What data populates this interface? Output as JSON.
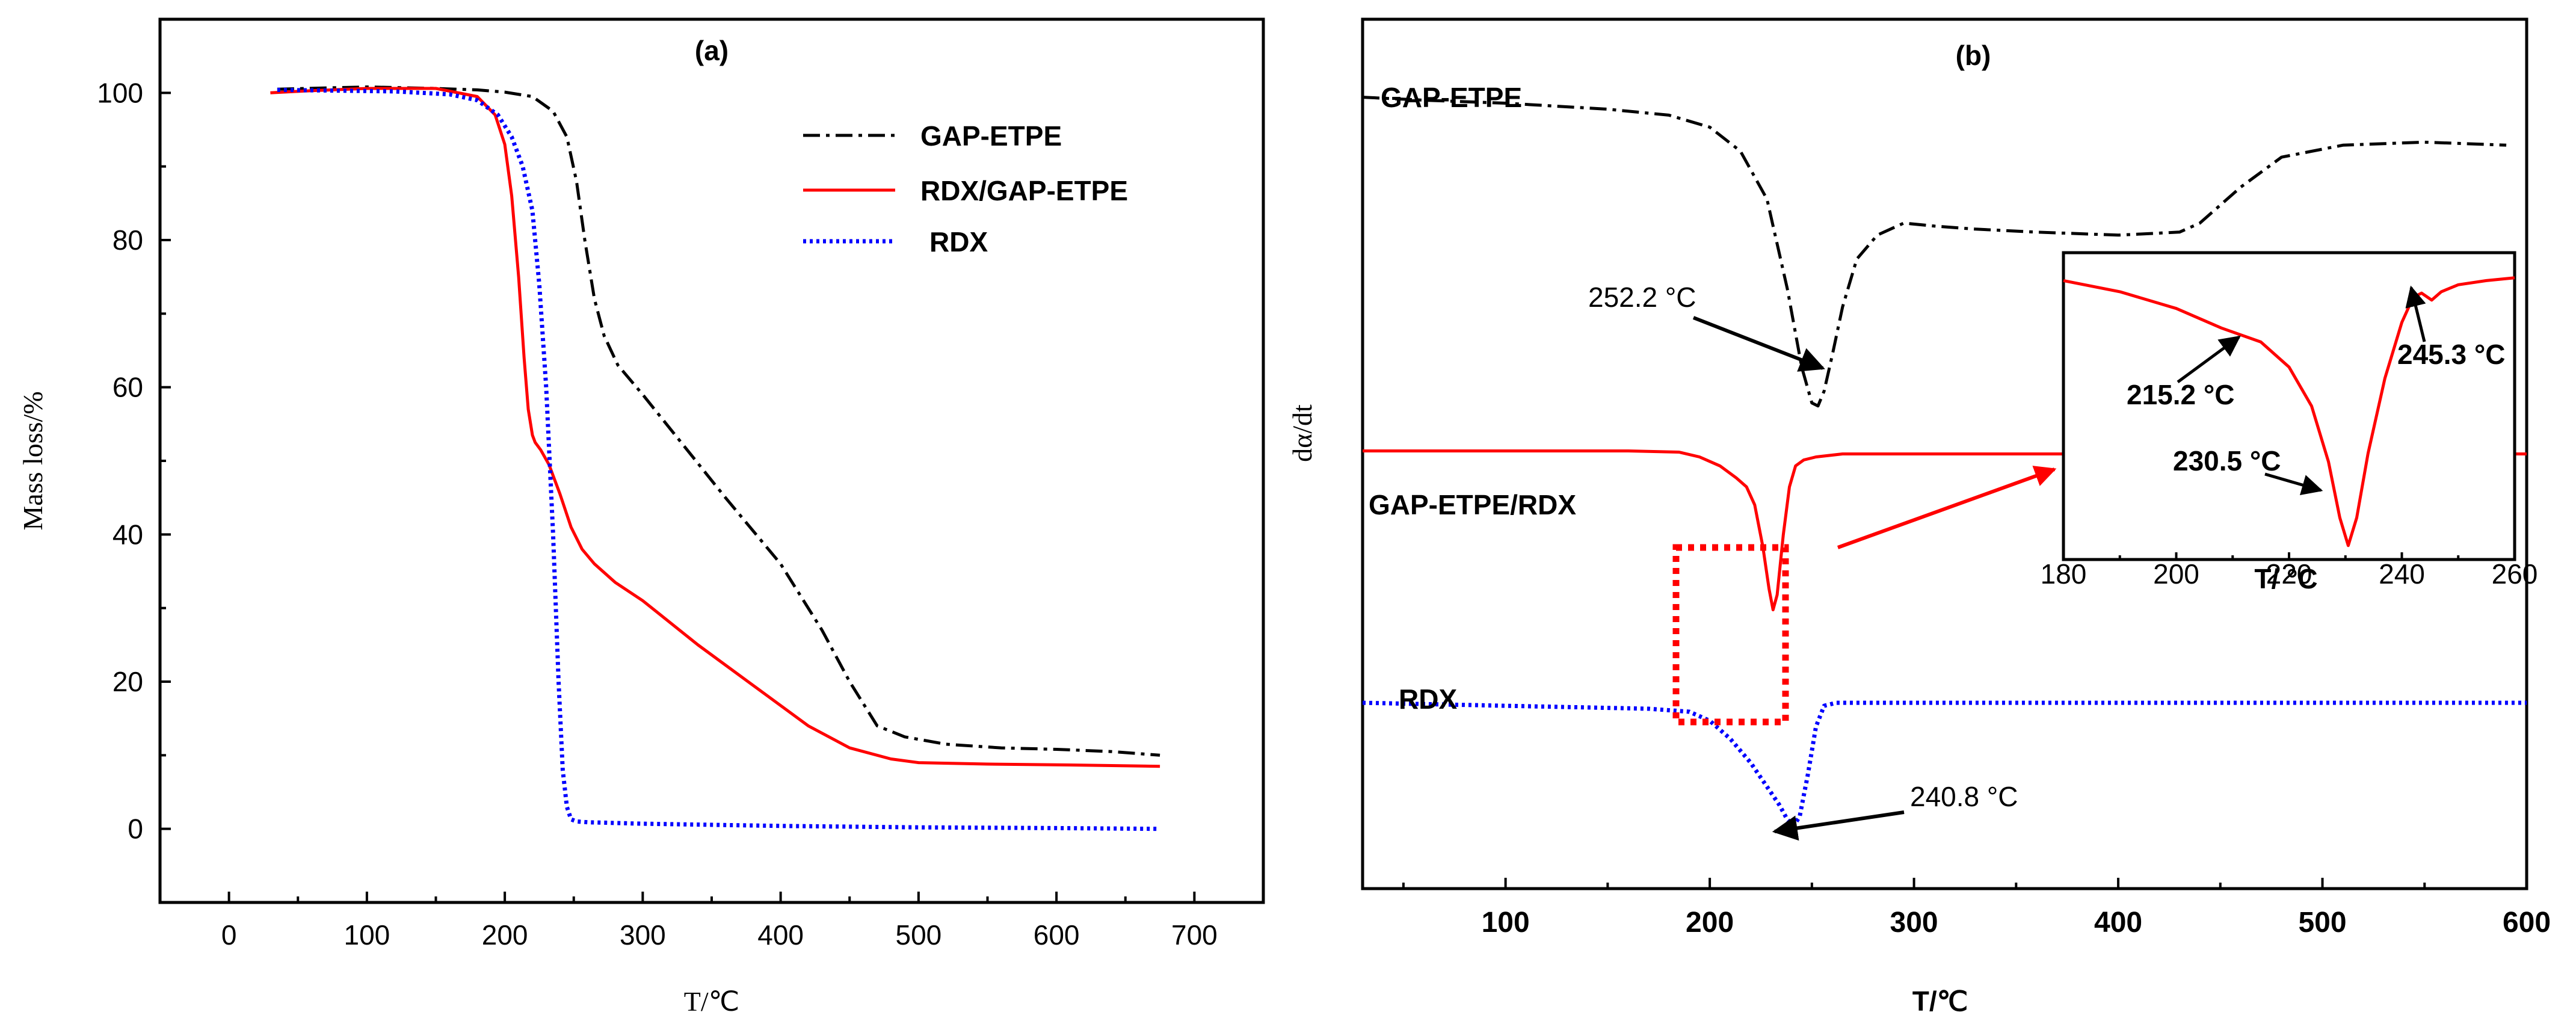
{
  "chart_data": [
    {
      "type": "line",
      "panel": "(a)",
      "xlabel": "T/℃",
      "ylabel": "Mass loss/%",
      "xlim": [
        -50,
        750
      ],
      "ylim": [
        -10,
        110
      ],
      "xticks": [
        0,
        100,
        200,
        300,
        400,
        500,
        600,
        700
      ],
      "yticks": [
        0,
        20,
        40,
        60,
        80,
        100
      ],
      "legend": "top-right",
      "series": [
        {
          "name": "GAP-ETPE",
          "color": "#000000",
          "style": "dash-dot",
          "x": [
            35,
            100,
            150,
            180,
            200,
            220,
            235,
            245,
            252,
            258,
            265,
            272,
            282,
            300,
            330,
            360,
            400,
            430,
            450,
            470,
            490,
            520,
            560,
            600,
            640,
            675
          ],
          "y": [
            100.5,
            100.8,
            100.6,
            100.4,
            100.1,
            99.5,
            97.5,
            94,
            88,
            80,
            72,
            67,
            63,
            59,
            52,
            45,
            36,
            27,
            20,
            14,
            12.5,
            11.5,
            11,
            10.8,
            10.5,
            10
          ]
        },
        {
          "name": "RDX/GAP-ETPE",
          "color": "#ff0000",
          "style": "solid",
          "x": [
            30,
            60,
            100,
            150,
            180,
            193,
            200,
            205,
            210,
            214,
            217,
            220,
            222,
            226,
            232,
            240,
            248,
            256,
            265,
            280,
            300,
            340,
            380,
            420,
            450,
            480,
            500,
            550,
            600,
            640,
            675
          ],
          "y": [
            100,
            100.3,
            100.6,
            100.6,
            99.5,
            97,
            93,
            86,
            75,
            64,
            57,
            53.5,
            52.5,
            51.5,
            49.5,
            45.5,
            41,
            38,
            36,
            33.5,
            31,
            25,
            19.5,
            14,
            11,
            9.5,
            9,
            8.8,
            8.7,
            8.6,
            8.5
          ]
        },
        {
          "name": "RDX",
          "color": "#0000ff",
          "style": "dotted",
          "x": [
            35,
            80,
            120,
            160,
            180,
            195,
            205,
            213,
            220,
            225,
            230,
            235,
            239,
            242,
            245,
            248,
            252,
            260,
            300,
            400,
            500,
            600,
            675
          ],
          "y": [
            100.4,
            100.3,
            100.2,
            99.8,
            99,
            97,
            94,
            90,
            84,
            74,
            60,
            40,
            20,
            8,
            3,
            1.3,
            1,
            0.9,
            0.7,
            0.4,
            0.2,
            0.1,
            0
          ]
        }
      ]
    },
    {
      "type": "line",
      "panel": "(b)",
      "xlabel": "T/℃",
      "ylabel": "dα/dt",
      "xlim": [
        30,
        600
      ],
      "xticks": [
        100,
        200,
        300,
        400,
        500,
        600
      ],
      "yticks_shown": false,
      "series": [
        {
          "name": "GAP-ETPE",
          "label": "GAP-ETPE",
          "color": "#000000",
          "style": "dash-dot",
          "x": [
            30,
            60,
            100,
            150,
            180,
            200,
            215,
            228,
            238,
            245,
            250,
            253,
            256,
            260,
            265,
            272,
            282,
            295,
            310,
            330,
            360,
            400,
            430,
            440,
            460,
            480,
            510,
            550,
            590
          ],
          "y": [
            0.87,
            0.865,
            0.86,
            0.85,
            0.84,
            0.82,
            0.78,
            0.7,
            0.55,
            0.42,
            0.36,
            0.355,
            0.38,
            0.44,
            0.52,
            0.6,
            0.64,
            0.66,
            0.655,
            0.65,
            0.645,
            0.64,
            0.645,
            0.66,
            0.72,
            0.77,
            0.79,
            0.795,
            0.79
          ]
        },
        {
          "name": "GAP-ETPE/RDX",
          "label": "GAP-ETPE/RDX",
          "color": "#ff0000",
          "style": "solid",
          "x": [
            30,
            100,
            160,
            185,
            195,
            205,
            213,
            218,
            222,
            226,
            229,
            231,
            233,
            236,
            239,
            242,
            246,
            252,
            265,
            300,
            400,
            500,
            600
          ],
          "y": [
            0.28,
            0.28,
            0.28,
            0.278,
            0.27,
            0.255,
            0.235,
            0.22,
            0.19,
            0.12,
            0.05,
            0.015,
            0.04,
            0.14,
            0.22,
            0.255,
            0.265,
            0.27,
            0.275,
            0.275,
            0.275,
            0.275,
            0.275
          ]
        },
        {
          "name": "RDX",
          "label": "RDX",
          "color": "#0000ff",
          "style": "dotted",
          "x": [
            30,
            100,
            170,
            190,
            200,
            210,
            220,
            228,
            234,
            238,
            241,
            244,
            248,
            252,
            256,
            262,
            300,
            400,
            500,
            600
          ],
          "y": [
            -0.14,
            -0.145,
            -0.15,
            -0.155,
            -0.17,
            -0.2,
            -0.24,
            -0.28,
            -0.31,
            -0.335,
            -0.345,
            -0.33,
            -0.26,
            -0.18,
            -0.145,
            -0.14,
            -0.14,
            -0.14,
            -0.14,
            -0.14
          ]
        }
      ],
      "annotations": [
        {
          "text": "252.2 °C",
          "target_x": 252.2,
          "series": "GAP-ETPE"
        },
        {
          "text": "240.8 °C",
          "target_x": 240.8,
          "series": "RDX"
        }
      ],
      "inset": {
        "xlabel": "T/ °C",
        "xlim": [
          180,
          260
        ],
        "xticks": [
          180,
          200,
          220,
          240,
          260
        ],
        "series": {
          "color": "#ff0000",
          "x": [
            180,
            190,
            200,
            208,
            215,
            220,
            224,
            227,
            229,
            230.5,
            232,
            234,
            237,
            240,
            242,
            243.5,
            245.3,
            247,
            250,
            255,
            260
          ],
          "y": [
            1.0,
            0.96,
            0.9,
            0.83,
            0.78,
            0.69,
            0.55,
            0.35,
            0.15,
            0.05,
            0.15,
            0.38,
            0.65,
            0.85,
            0.94,
            0.955,
            0.93,
            0.96,
            0.985,
            1.0,
            1.01
          ]
        },
        "annotations": [
          {
            "text": "215.2 °C",
            "target_x": 215.2
          },
          {
            "text": "230.5 °C",
            "target_x": 230.5
          },
          {
            "text": "245.3 °C",
            "target_x": 245.3
          }
        ]
      }
    }
  ]
}
